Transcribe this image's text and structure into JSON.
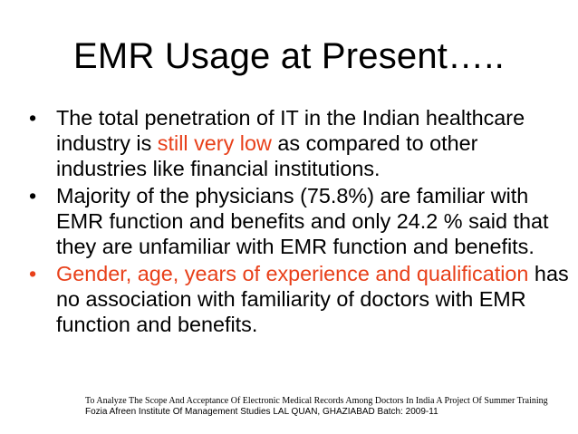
{
  "slide": {
    "title": "EMR Usage at Present…..",
    "accent_color": "#e8401a",
    "bullet_glyph": "•",
    "bullets": [
      {
        "parts": [
          "The total penetration of IT in the Indian healthcare industry is ",
          "still very low",
          " as compared to other industries like financial institutions."
        ]
      },
      {
        "text": "Majority of the physicians (75.8%) are familiar with EMR function and benefits and only 24.2 % said that they are unfamiliar with EMR function and benefits."
      },
      {
        "parts": [
          "Gender, age, years of experience and qualification",
          " has no association with familiarity of doctors with EMR function and benefits."
        ]
      }
    ],
    "footer": {
      "line1": "To Analyze The Scope And Acceptance Of Electronic Medical Records Among Doctors In India  A Project Of Summer Training",
      "line2": "Fozia Afreen  Institute Of Management Studies LAL QUAN, GHAZIABAD Batch: 2009-11"
    }
  }
}
